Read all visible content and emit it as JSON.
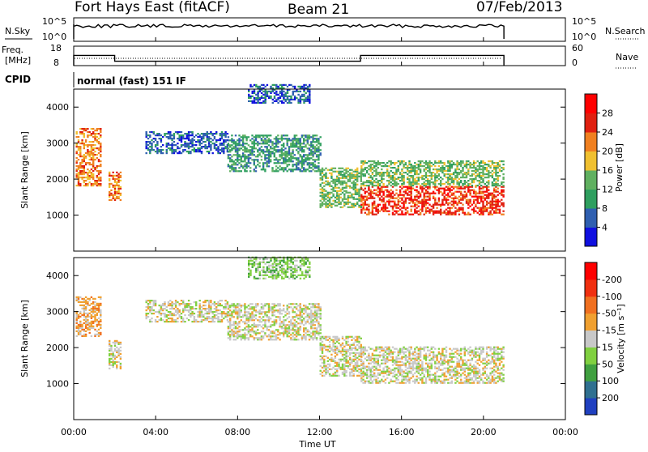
{
  "header": {
    "station": "Fort Hays East (fitACF)",
    "beam": "Beam 21",
    "date": "07/Feb/2013"
  },
  "noise_panel": {
    "left_label": "N.Sky",
    "right_label": "N.Search",
    "left_ticks": [
      "10^5",
      "10^0"
    ],
    "right_ticks": [
      "10^5",
      "10^0"
    ]
  },
  "freq_panel": {
    "left_label_1": "Freq.",
    "left_label_2": "[MHz]",
    "right_label": "Nave",
    "left_ticks": [
      "18",
      "8"
    ],
    "right_ticks": [
      "60",
      "0"
    ],
    "freq_steps": [
      {
        "start_hr": 0.0,
        "end_hr": 2.0,
        "mhz": 15.0
      },
      {
        "start_hr": 2.0,
        "end_hr": 14.0,
        "mhz": 11.0
      },
      {
        "start_hr": 14.0,
        "end_hr": 21.0,
        "mhz": 15.0
      }
    ]
  },
  "cpid": {
    "label": "CPID",
    "value": "normal (fast) 151 IF"
  },
  "chart_data": [
    {
      "type": "heatmap",
      "title": "Power",
      "ylabel": "Slant Range [km]",
      "xlabel": "",
      "ylim": [
        0,
        4500
      ],
      "y_ticks": [
        "1000",
        "2000",
        "3000",
        "4000"
      ],
      "colorbar": {
        "label": "Power [dB]",
        "ticks": [
          "4",
          "8",
          "12",
          "16",
          "20",
          "24",
          "28"
        ],
        "colors": [
          "#1010e0",
          "#2f5fb0",
          "#2f9f5f",
          "#60b060",
          "#f0c030",
          "#f08020",
          "#e02010",
          "#ff0000"
        ]
      },
      "scatter_bands": [
        {
          "start_hr": 0.1,
          "end_hr": 1.3,
          "range_lo": 1800,
          "range_hi": 3400,
          "level": 5
        },
        {
          "start_hr": 1.7,
          "end_hr": 2.3,
          "range_lo": 1400,
          "range_hi": 2200,
          "level": 5
        },
        {
          "start_hr": 3.5,
          "end_hr": 7.5,
          "range_lo": 2700,
          "range_hi": 3300,
          "level": 1
        },
        {
          "start_hr": 7.5,
          "end_hr": 12.0,
          "range_lo": 2200,
          "range_hi": 3200,
          "level": 2
        },
        {
          "start_hr": 12.0,
          "end_hr": 14.0,
          "range_lo": 1200,
          "range_hi": 2300,
          "level": 3
        },
        {
          "start_hr": 14.0,
          "end_hr": 21.0,
          "range_lo": 1000,
          "range_hi": 1800,
          "level": 6
        },
        {
          "start_hr": 14.0,
          "end_hr": 21.0,
          "range_lo": 1800,
          "range_hi": 2500,
          "level": 3
        },
        {
          "start_hr": 8.5,
          "end_hr": 11.5,
          "range_lo": 4100,
          "range_hi": 4600,
          "level": 1
        }
      ]
    },
    {
      "type": "heatmap",
      "title": "Velocity",
      "ylabel": "Slant Range [km]",
      "xlabel": "Time UT",
      "ylim": [
        0,
        4500
      ],
      "y_ticks": [
        "1000",
        "2000",
        "3000",
        "4000"
      ],
      "x_ticks": [
        "00:00",
        "04:00",
        "08:00",
        "12:00",
        "16:00",
        "20:00",
        "00:00"
      ],
      "colorbar": {
        "label": "Velocity [m s⁻¹]",
        "ticks": [
          "200",
          "100",
          "50",
          "15",
          "-15",
          "-50",
          "-100",
          "-200"
        ],
        "colors": [
          "#2040c0",
          "#307090",
          "#40a040",
          "#80d040",
          "#c8c8c8",
          "#f0a030",
          "#f07020",
          "#f03010",
          "#ff0000"
        ]
      },
      "scatter_bands": [
        {
          "start_hr": 0.1,
          "end_hr": 1.3,
          "range_lo": 2300,
          "range_hi": 3400,
          "level": 5
        },
        {
          "start_hr": 1.7,
          "end_hr": 2.3,
          "range_lo": 1400,
          "range_hi": 2200,
          "level": 4
        },
        {
          "start_hr": 3.5,
          "end_hr": 7.5,
          "range_lo": 2700,
          "range_hi": 3300,
          "level": 4
        },
        {
          "start_hr": 7.5,
          "end_hr": 12.0,
          "range_lo": 2200,
          "range_hi": 3200,
          "level": 4
        },
        {
          "start_hr": 12.0,
          "end_hr": 14.0,
          "range_lo": 1200,
          "range_hi": 2300,
          "level": 4
        },
        {
          "start_hr": 14.0,
          "end_hr": 21.0,
          "range_lo": 1000,
          "range_hi": 2000,
          "level": 4
        },
        {
          "start_hr": 8.5,
          "end_hr": 11.5,
          "range_lo": 3900,
          "range_hi": 4500,
          "level": 3
        }
      ]
    }
  ]
}
